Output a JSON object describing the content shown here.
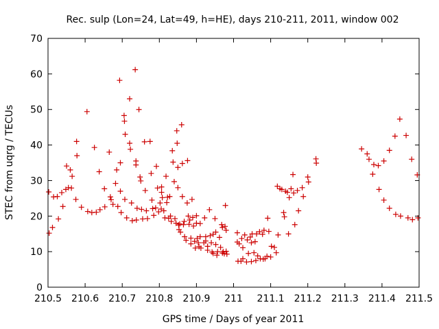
{
  "chart_data": {
    "type": "scatter",
    "title": "Rec. sulp (Lon=24, Lat=49, h=HE), days 210-211, 2011, window 002",
    "xlabel": "GPS time / Days of year 2011",
    "ylabel": "STEC from uqrg / TECUs",
    "xlim": [
      210.5,
      211.5
    ],
    "ylim": [
      0,
      70
    ],
    "xticks": [
      210.5,
      210.6,
      210.7,
      210.8,
      210.9,
      211,
      211.1,
      211.2,
      211.3,
      211.4,
      211.5
    ],
    "xtick_labels": [
      "210.5",
      "210.6",
      "210.7",
      "210.8",
      "210.9",
      "211",
      "211.1",
      "211.2",
      "211.3",
      "211.4",
      "211.5"
    ],
    "yticks": [
      0,
      10,
      20,
      30,
      40,
      50,
      60,
      70
    ],
    "ytick_labels": [
      "0",
      "10",
      "20",
      "30",
      "40",
      "50",
      "60",
      "70"
    ],
    "grid": false,
    "legend": "none",
    "marker": "+",
    "color": "#cc0000",
    "series": [
      {
        "name": "STEC",
        "points": [
          [
            210.502,
            26.8
          ],
          [
            210.503,
            15.2
          ],
          [
            210.512,
            16.8
          ],
          [
            210.515,
            25.4
          ],
          [
            210.525,
            25.5
          ],
          [
            210.528,
            19.2
          ],
          [
            210.537,
            26.6
          ],
          [
            210.54,
            22.7
          ],
          [
            210.548,
            27.5
          ],
          [
            210.55,
            34.1
          ],
          [
            210.555,
            28.0
          ],
          [
            210.56,
            33.0
          ],
          [
            210.563,
            27.9
          ],
          [
            210.565,
            31.2
          ],
          [
            210.575,
            24.7
          ],
          [
            210.577,
            41.0
          ],
          [
            210.578,
            37.0
          ],
          [
            210.59,
            22.5
          ],
          [
            210.605,
            49.4
          ],
          [
            210.607,
            21.3
          ],
          [
            210.618,
            21.0
          ],
          [
            210.625,
            39.3
          ],
          [
            210.63,
            21.1
          ],
          [
            210.638,
            32.5
          ],
          [
            210.64,
            21.8
          ],
          [
            210.652,
            27.7
          ],
          [
            210.653,
            22.6
          ],
          [
            210.665,
            38.0
          ],
          [
            210.668,
            25.4
          ],
          [
            210.67,
            24.6
          ],
          [
            210.675,
            23.3
          ],
          [
            210.682,
            29.2
          ],
          [
            210.685,
            33.0
          ],
          [
            210.688,
            22.7
          ],
          [
            210.693,
            58.2
          ],
          [
            210.695,
            35.0
          ],
          [
            210.695,
            27.0
          ],
          [
            210.697,
            21.0
          ],
          [
            210.705,
            48.3
          ],
          [
            210.706,
            46.7
          ],
          [
            210.707,
            24.7
          ],
          [
            210.708,
            43.0
          ],
          [
            210.712,
            19.5
          ],
          [
            210.72,
            53.0
          ],
          [
            210.72,
            40.5
          ],
          [
            210.722,
            38.8
          ],
          [
            210.725,
            23.7
          ],
          [
            210.727,
            18.7
          ],
          [
            210.735,
            61.2
          ],
          [
            210.737,
            35.5
          ],
          [
            210.737,
            34.4
          ],
          [
            210.738,
            18.9
          ],
          [
            210.74,
            22.2
          ],
          [
            210.745,
            50.0
          ],
          [
            210.748,
            31.0
          ],
          [
            210.75,
            29.9
          ],
          [
            210.752,
            21.9
          ],
          [
            210.755,
            19.2
          ],
          [
            210.76,
            40.9
          ],
          [
            210.762,
            27.2
          ],
          [
            210.765,
            21.5
          ],
          [
            210.768,
            19.3
          ],
          [
            210.775,
            41.0
          ],
          [
            210.778,
            32.0
          ],
          [
            210.78,
            24.5
          ],
          [
            210.782,
            22.1
          ],
          [
            210.785,
            20.2
          ],
          [
            210.79,
            22.3
          ],
          [
            210.792,
            34.0
          ],
          [
            210.795,
            27.9
          ],
          [
            210.798,
            21.2
          ],
          [
            210.802,
            23.7
          ],
          [
            210.805,
            22.0
          ],
          [
            210.806,
            28.2
          ],
          [
            210.806,
            26.7
          ],
          [
            210.808,
            25.2
          ],
          [
            210.812,
            21.5
          ],
          [
            210.815,
            19.5
          ],
          [
            210.818,
            31.2
          ],
          [
            210.82,
            23.8
          ],
          [
            210.822,
            25.3
          ],
          [
            210.825,
            19.4
          ],
          [
            210.828,
            25.5
          ],
          [
            210.83,
            20.0
          ],
          [
            210.832,
            18.5
          ],
          [
            210.835,
            38.4
          ],
          [
            210.837,
            35.2
          ],
          [
            210.84,
            29.7
          ],
          [
            210.842,
            19.3
          ],
          [
            210.845,
            18.0
          ],
          [
            210.847,
            44.0
          ],
          [
            210.848,
            40.5
          ],
          [
            210.85,
            33.7
          ],
          [
            210.85,
            28.0
          ],
          [
            210.852,
            17.5
          ],
          [
            210.853,
            16.2
          ],
          [
            210.855,
            17.8
          ],
          [
            210.857,
            15.5
          ],
          [
            210.86,
            45.7
          ],
          [
            210.862,
            34.8
          ],
          [
            210.862,
            25.5
          ],
          [
            210.865,
            17.6
          ],
          [
            210.867,
            18.5
          ],
          [
            210.868,
            14.2
          ],
          [
            210.872,
            13.2
          ],
          [
            210.875,
            23.7
          ],
          [
            210.876,
            35.6
          ],
          [
            210.878,
            20.0
          ],
          [
            210.88,
            17.7
          ],
          [
            210.882,
            18.9
          ],
          [
            210.885,
            13.8
          ],
          [
            210.885,
            12.2
          ],
          [
            210.888,
            24.7
          ],
          [
            210.89,
            19.6
          ],
          [
            210.892,
            17.2
          ],
          [
            210.895,
            12.9
          ],
          [
            210.897,
            11.0
          ],
          [
            210.9,
            20.1
          ],
          [
            210.9,
            18.0
          ],
          [
            210.902,
            13.7
          ],
          [
            210.905,
            12.5
          ],
          [
            210.907,
            11.4
          ],
          [
            210.91,
            17.9
          ],
          [
            210.91,
            14.2
          ],
          [
            210.912,
            11.0
          ],
          [
            210.92,
            12.5
          ],
          [
            210.922,
            19.5
          ],
          [
            210.925,
            14.2
          ],
          [
            210.925,
            13.0
          ],
          [
            210.93,
            11.5
          ],
          [
            210.93,
            10.4
          ],
          [
            210.935,
            21.8
          ],
          [
            210.937,
            14.5
          ],
          [
            210.94,
            12.5
          ],
          [
            210.942,
            9.9
          ],
          [
            210.945,
            9.5
          ],
          [
            210.945,
            14.9
          ],
          [
            210.95,
            19.3
          ],
          [
            210.952,
            15.5
          ],
          [
            210.952,
            12.0
          ],
          [
            210.955,
            9.0
          ],
          [
            210.957,
            10.0
          ],
          [
            210.962,
            14.0
          ],
          [
            210.965,
            11.2
          ],
          [
            210.968,
            17.6
          ],
          [
            210.97,
            16.8
          ],
          [
            210.97,
            9.6
          ],
          [
            210.972,
            10.0
          ],
          [
            210.975,
            9.4
          ],
          [
            210.977,
            17.1
          ],
          [
            210.978,
            23.0
          ],
          [
            210.98,
            16.0
          ],
          [
            210.98,
            10.1
          ],
          [
            210.982,
            9.3
          ],
          [
            211.01,
            15.3
          ],
          [
            211.01,
            12.7
          ],
          [
            211.012,
            7.3
          ],
          [
            211.015,
            12.2
          ],
          [
            211.02,
            7.3
          ],
          [
            211.022,
            13.7
          ],
          [
            211.025,
            11.1
          ],
          [
            211.025,
            8.0
          ],
          [
            211.03,
            14.7
          ],
          [
            211.035,
            7.1
          ],
          [
            211.037,
            13.3
          ],
          [
            211.04,
            9.5
          ],
          [
            211.045,
            14.1
          ],
          [
            211.048,
            12.5
          ],
          [
            211.048,
            7.2
          ],
          [
            211.05,
            15.0
          ],
          [
            211.055,
            9.7
          ],
          [
            211.058,
            12.8
          ],
          [
            211.06,
            7.5
          ],
          [
            211.062,
            15.0
          ],
          [
            211.065,
            8.8
          ],
          [
            211.07,
            15.6
          ],
          [
            211.072,
            8.0
          ],
          [
            211.078,
            14.9
          ],
          [
            211.08,
            7.9
          ],
          [
            211.082,
            16.0
          ],
          [
            211.085,
            8.0
          ],
          [
            211.09,
            8.7
          ],
          [
            211.092,
            19.4
          ],
          [
            211.095,
            15.7
          ],
          [
            211.1,
            8.5
          ],
          [
            211.102,
            11.5
          ],
          [
            211.11,
            11.2
          ],
          [
            211.115,
            9.7
          ],
          [
            211.118,
            28.4
          ],
          [
            211.12,
            14.7
          ],
          [
            211.125,
            27.7
          ],
          [
            211.13,
            27.5
          ],
          [
            211.135,
            21.0
          ],
          [
            211.137,
            19.8
          ],
          [
            211.14,
            27.0
          ],
          [
            211.145,
            26.7
          ],
          [
            211.148,
            15.0
          ],
          [
            211.15,
            25.2
          ],
          [
            211.155,
            27.7
          ],
          [
            211.16,
            31.7
          ],
          [
            211.162,
            26.5
          ],
          [
            211.165,
            17.6
          ],
          [
            211.172,
            27.2
          ],
          [
            211.175,
            21.5
          ],
          [
            211.185,
            28.0
          ],
          [
            211.188,
            25.5
          ],
          [
            211.2,
            31.0
          ],
          [
            211.202,
            29.6
          ],
          [
            211.222,
            36.1
          ],
          [
            211.223,
            34.9
          ],
          [
            211.345,
            38.9
          ],
          [
            211.36,
            37.5
          ],
          [
            211.365,
            36.0
          ],
          [
            211.375,
            31.8
          ],
          [
            211.378,
            34.5
          ],
          [
            211.39,
            34.2
          ],
          [
            211.392,
            27.5
          ],
          [
            211.405,
            24.5
          ],
          [
            211.405,
            35.5
          ],
          [
            211.42,
            38.5
          ],
          [
            211.42,
            22.2
          ],
          [
            211.435,
            42.5
          ],
          [
            211.437,
            20.5
          ],
          [
            211.448,
            47.3
          ],
          [
            211.45,
            20.0
          ],
          [
            211.465,
            42.7
          ],
          [
            211.47,
            19.5
          ],
          [
            211.48,
            36.0
          ],
          [
            211.482,
            19.0
          ],
          [
            211.495,
            31.6
          ],
          [
            211.497,
            19.5
          ]
        ]
      }
    ]
  }
}
